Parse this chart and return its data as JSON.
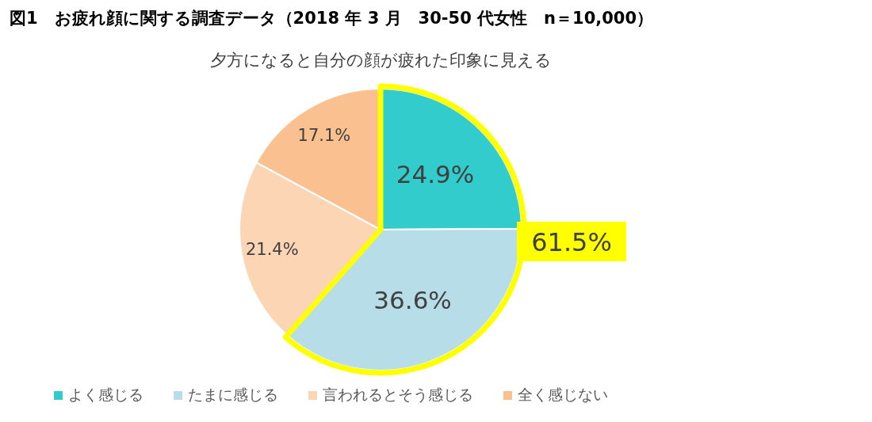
{
  "chart_data": {
    "type": "pie",
    "title": "図1　お疲れ顔に関する調査データ（2018 年 3 月　30-50 代女性　n＝10,000）",
    "subtitle": "夕方になると自分の顔が疲れた印象に見える",
    "categories": [
      "よく感じる",
      "たまに感じる",
      "言われるとそう感じる",
      "全く感じない"
    ],
    "values": [
      24.9,
      36.6,
      21.4,
      17.1
    ],
    "colors": [
      "#33cccc",
      "#b7dde8",
      "#fcd5b5",
      "#fac090"
    ],
    "value_labels": [
      "24.9%",
      "36.6%",
      "21.4%",
      "17.1%"
    ],
    "annotations": [
      "61.5%"
    ],
    "legend": "bottom"
  }
}
